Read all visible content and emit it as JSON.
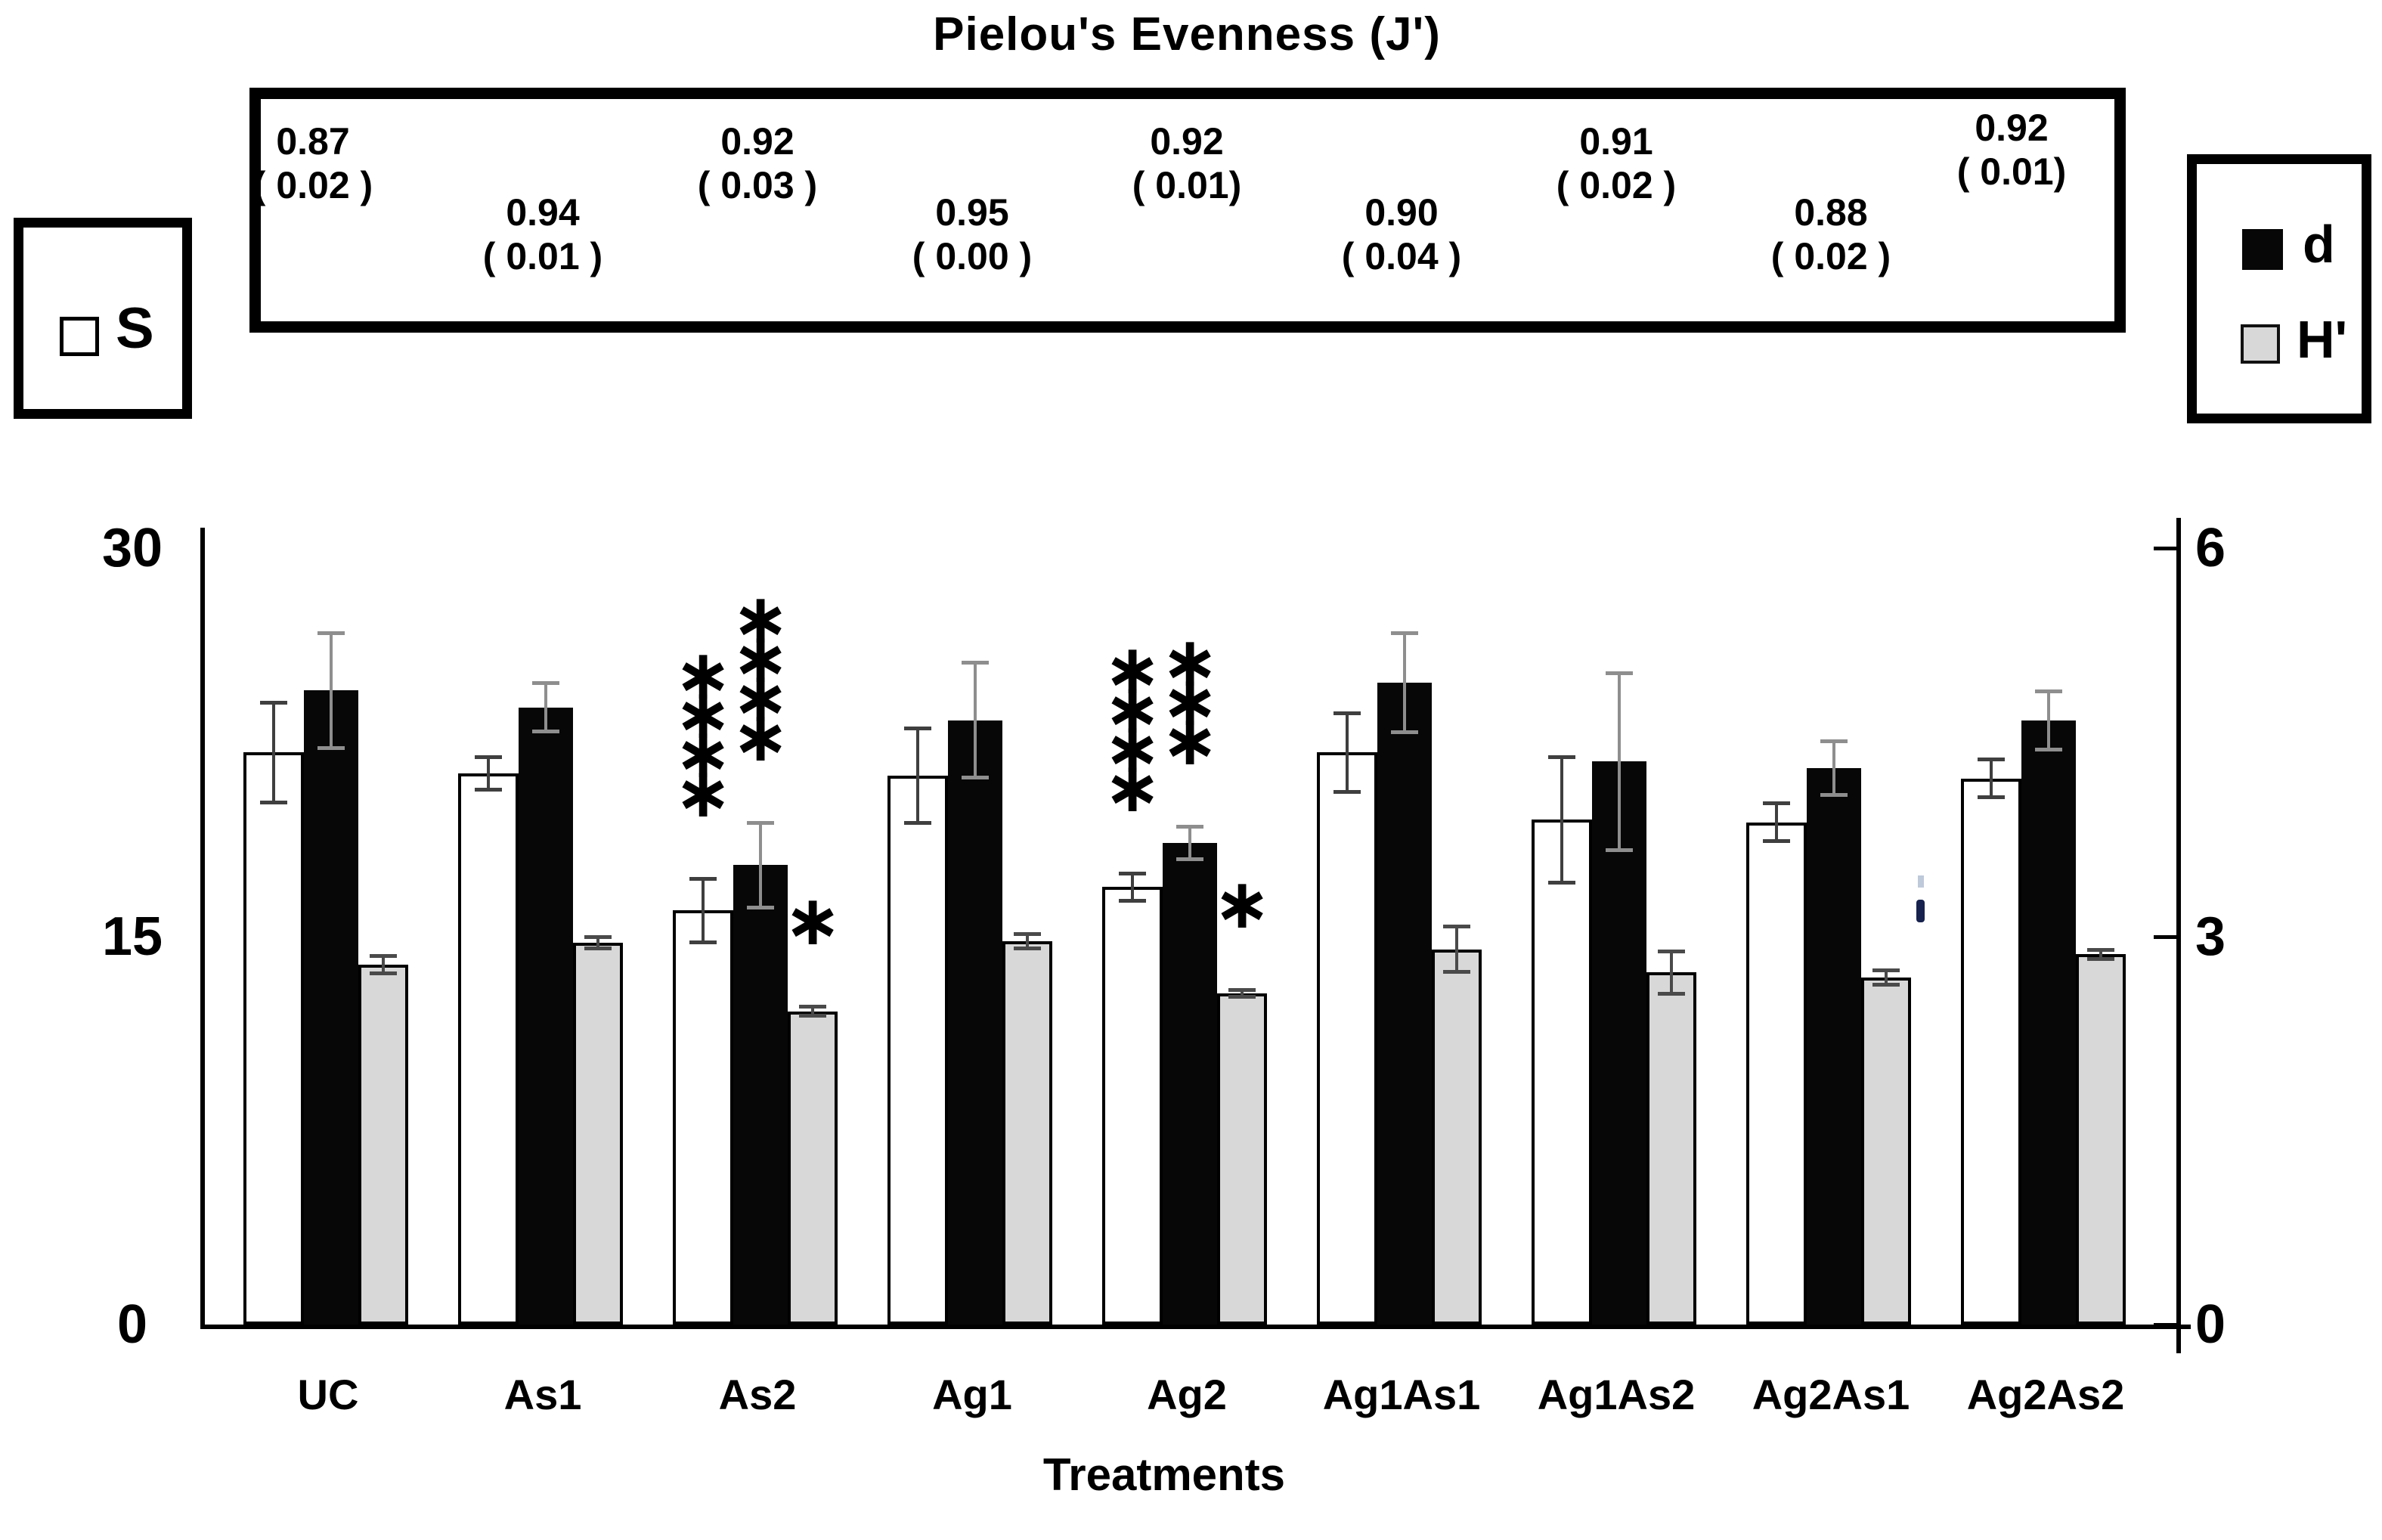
{
  "title": "Pielou's Evenness (J')",
  "x_axis_title": "Treatments",
  "legend": {
    "s_label": "S",
    "d_label": "d",
    "h_label": "H'"
  },
  "axes": {
    "left_ticks": [
      {
        "label": "30",
        "value": 30
      },
      {
        "label": "15",
        "value": 15
      },
      {
        "label": "0",
        "value": 0
      }
    ],
    "right_ticks": [
      {
        "label": "6",
        "value": 6
      },
      {
        "label": "3",
        "value": 3
      },
      {
        "label": "0",
        "value": 0
      }
    ]
  },
  "colors": {
    "bar_s": "#ffffff",
    "bar_d": "#070707",
    "bar_h": "#d8d8d8",
    "whisker_s": "#3f3f3f",
    "whisker_d": "#8e8e8e",
    "whisker_h": "#4a4a4a"
  },
  "chart_data": {
    "type": "bar",
    "title": "Pielou's Evenness (J')",
    "xlabel": "Treatments",
    "left_axis": {
      "range": [
        0,
        30
      ],
      "ticks": [
        0,
        15,
        30
      ]
    },
    "right_axis": {
      "range": [
        0,
        6
      ],
      "ticks": [
        0,
        3,
        6
      ]
    },
    "grid": false,
    "legend_position": "sides",
    "categories": [
      "UC",
      "As1",
      "As2",
      "Ag1",
      "Ag2",
      "Ag1As1",
      "Ag1As2",
      "Ag2As1",
      "Ag2As2"
    ],
    "series": [
      {
        "name": "S",
        "axis": "left",
        "style": "s",
        "values": [
          22.1,
          21.3,
          16.0,
          21.2,
          16.9,
          22.1,
          19.5,
          19.4,
          21.1
        ],
        "errors": [
          2.0,
          0.7,
          1.3,
          1.9,
          0.6,
          1.6,
          2.5,
          0.8,
          0.8
        ],
        "sig": [
          "",
          "",
          "****",
          "",
          "****",
          "",
          "",
          "",
          ""
        ]
      },
      {
        "name": "d",
        "axis": "right",
        "style": "d",
        "values": [
          4.9,
          4.77,
          3.55,
          4.67,
          3.72,
          4.96,
          4.35,
          4.3,
          4.67
        ],
        "errors": [
          0.46,
          0.2,
          0.34,
          0.46,
          0.14,
          0.4,
          0.7,
          0.22,
          0.24
        ],
        "sig": [
          "",
          "",
          "****",
          "",
          "***",
          "",
          "",
          "",
          ""
        ]
      },
      {
        "name": "H'",
        "axis": "right",
        "style": "h",
        "values": [
          2.78,
          2.95,
          2.42,
          2.96,
          2.56,
          2.9,
          2.72,
          2.68,
          2.86
        ],
        "errors": [
          0.08,
          0.06,
          0.05,
          0.07,
          0.04,
          0.19,
          0.18,
          0.07,
          0.05
        ],
        "sig": [
          "",
          "",
          "*",
          "",
          "*",
          "",
          "",
          "",
          ""
        ]
      }
    ],
    "evenness_annotations": {
      "values": [
        "0.87",
        "0.94",
        "0.92",
        "0.95",
        "0.92",
        "0.90",
        "0.91",
        "0.88",
        "0.92"
      ],
      "sds": [
        "( 0.02 )",
        "( 0.01 )",
        "( 0.03 )",
        "( 0.00 )",
        "( 0.01)",
        "( 0.04 )",
        "( 0.02 )",
        "( 0.02 )",
        "( 0.01)"
      ],
      "rows": [
        "top",
        "bottom",
        "top",
        "bottom",
        "top",
        "bottom",
        "top",
        "bottom",
        "top"
      ]
    }
  }
}
